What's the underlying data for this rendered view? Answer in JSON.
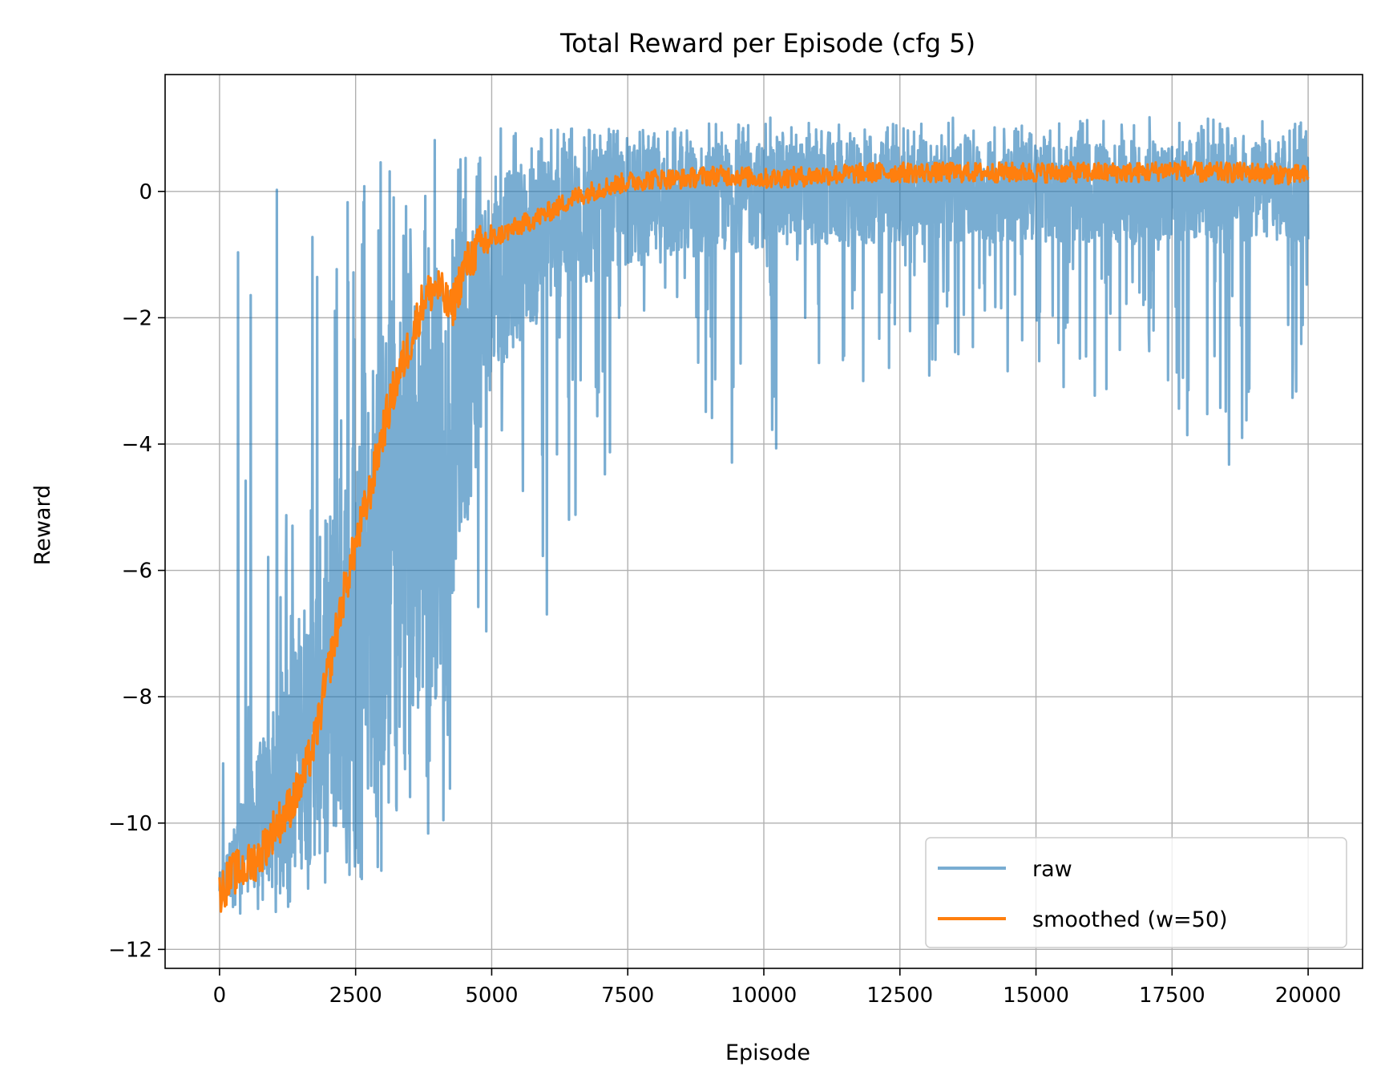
{
  "chart_data": {
    "type": "line",
    "title": "Total Reward per Episode (cfg 5)",
    "xlabel": "Episode",
    "ylabel": "Reward",
    "xlim": [
      -1000,
      21000
    ],
    "ylim": [
      -12.3,
      1.85
    ],
    "x_ticks": [
      0,
      2500,
      5000,
      7500,
      10000,
      12500,
      15000,
      17500,
      20000
    ],
    "x_tick_labels": [
      "0",
      "2500",
      "5000",
      "7500",
      "10000",
      "12500",
      "15000",
      "17500",
      "20000"
    ],
    "y_ticks": [
      -12,
      -10,
      -8,
      -6,
      -4,
      -2,
      0
    ],
    "y_tick_labels": [
      "−12",
      "−10",
      "−8",
      "−6",
      "−4",
      "−2",
      "0"
    ],
    "grid": true,
    "legend": "lower-right",
    "series": [
      {
        "name": "raw",
        "color": "#1f77b4",
        "alpha": 0.6,
        "upper_envelope": [
          [
            0,
            -9.5
          ],
          [
            100,
            -6.2
          ],
          [
            200,
            -4.9
          ],
          [
            300,
            -0.3
          ],
          [
            500,
            -0.5
          ],
          [
            800,
            -1.2
          ],
          [
            1000,
            0.1
          ],
          [
            1200,
            0.4
          ],
          [
            1500,
            0.6
          ],
          [
            1800,
            0.8
          ],
          [
            2000,
            0.5
          ],
          [
            2500,
            0.9
          ],
          [
            3000,
            0.8
          ],
          [
            3500,
            0.9
          ],
          [
            4000,
            1.0
          ],
          [
            4500,
            1.1
          ],
          [
            5000,
            1.1
          ],
          [
            6000,
            1.1
          ],
          [
            7000,
            1.0
          ],
          [
            8000,
            1.0
          ],
          [
            10000,
            1.2
          ],
          [
            12000,
            1.0
          ],
          [
            13000,
            1.2
          ],
          [
            15000,
            1.1
          ],
          [
            17500,
            1.2
          ],
          [
            20000,
            1.1
          ]
        ],
        "lower_envelope": [
          [
            0,
            -11.5
          ],
          [
            500,
            -11.6
          ],
          [
            1000,
            -11.5
          ],
          [
            2000,
            -11.1
          ],
          [
            2500,
            -11.0
          ],
          [
            3000,
            -10.8
          ],
          [
            3500,
            -10.5
          ],
          [
            4000,
            -10.2
          ],
          [
            4500,
            -9.8
          ],
          [
            4600,
            -8.3
          ],
          [
            5000,
            -6.6
          ],
          [
            5900,
            -7.5
          ],
          [
            6700,
            -5.2
          ],
          [
            7500,
            -3.7
          ],
          [
            9500,
            -4.7
          ],
          [
            10100,
            -4.2
          ],
          [
            12000,
            -3.0
          ],
          [
            13000,
            -3.0
          ],
          [
            15000,
            -2.8
          ],
          [
            16000,
            -3.4
          ],
          [
            17000,
            -2.7
          ],
          [
            18000,
            -4.2
          ],
          [
            18800,
            -5.0
          ],
          [
            19700,
            -4.5
          ],
          [
            20000,
            -1.5
          ]
        ],
        "typical_band": [
          [
            0,
            -11.2,
            -10.8
          ],
          [
            1000,
            -11.0,
            -8.0
          ],
          [
            2000,
            -10.5,
            -5.0
          ],
          [
            3000,
            -9.5,
            -2.0
          ],
          [
            4000,
            -8.0,
            -1.0
          ],
          [
            5000,
            -3.0,
            0.2
          ],
          [
            6000,
            -1.8,
            0.6
          ],
          [
            7500,
            -1.2,
            0.7
          ],
          [
            10000,
            -0.9,
            0.8
          ],
          [
            15000,
            -0.8,
            0.8
          ],
          [
            20000,
            -0.8,
            0.8
          ]
        ]
      },
      {
        "name": "smoothed (w=50)",
        "color": "#ff7f0e",
        "x": [
          0,
          250,
          500,
          750,
          1000,
          1250,
          1500,
          1750,
          2000,
          2250,
          2500,
          2750,
          3000,
          3250,
          3500,
          3750,
          4000,
          4250,
          4500,
          4750,
          5000,
          5500,
          6000,
          6500,
          7000,
          7500,
          8000,
          8500,
          9000,
          9500,
          10000,
          11000,
          12000,
          13000,
          14000,
          15000,
          16000,
          17000,
          17500,
          18000,
          19000,
          20000
        ],
        "y": [
          -11.1,
          -10.8,
          -10.7,
          -10.5,
          -10.1,
          -9.8,
          -9.4,
          -8.7,
          -7.6,
          -6.5,
          -5.6,
          -4.8,
          -3.8,
          -3.0,
          -2.4,
          -1.7,
          -1.5,
          -1.9,
          -1.2,
          -0.9,
          -0.75,
          -0.55,
          -0.35,
          -0.1,
          0.05,
          0.15,
          0.2,
          0.2,
          0.25,
          0.25,
          0.2,
          0.25,
          0.3,
          0.3,
          0.3,
          0.3,
          0.3,
          0.3,
          0.35,
          0.3,
          0.3,
          0.25
        ]
      }
    ]
  }
}
